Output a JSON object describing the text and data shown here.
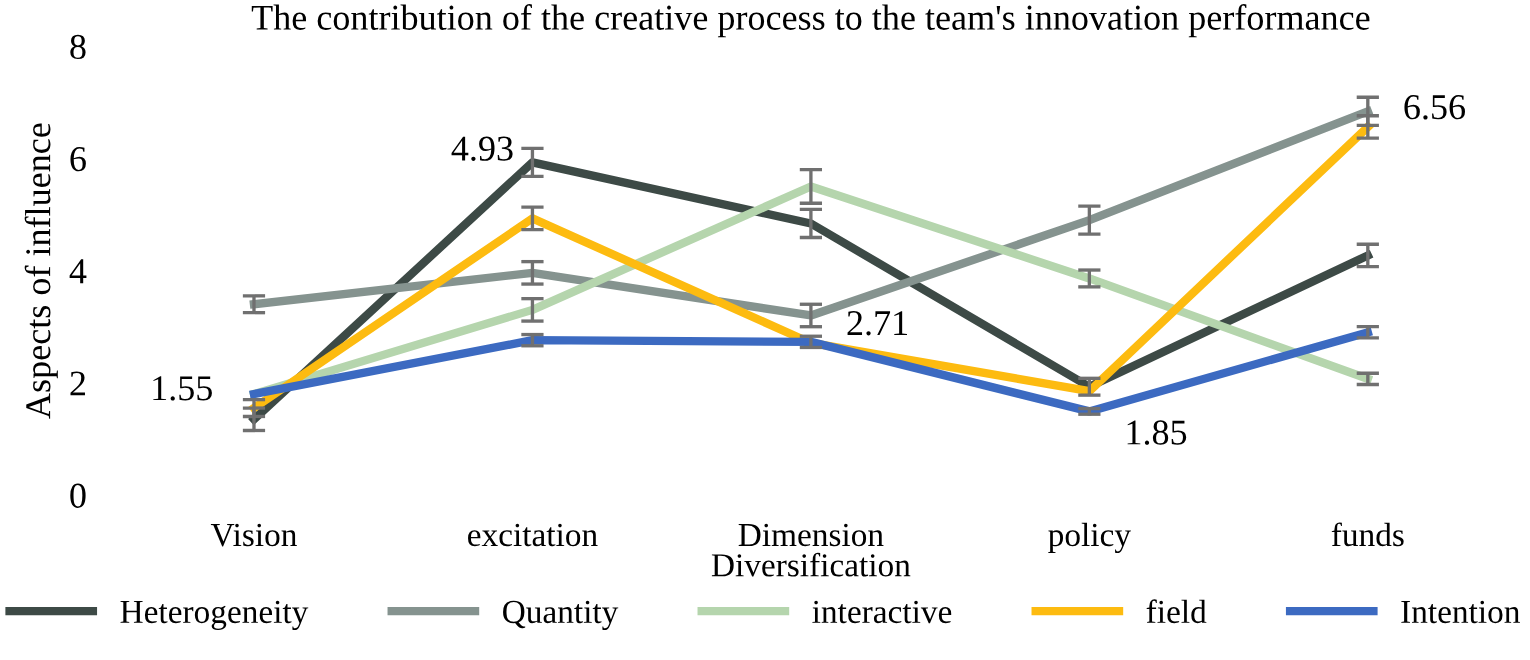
{
  "chart_data": {
    "type": "line",
    "title": "The contribution of the creative process to the team's innovation performance",
    "xlabel": "Diversification",
    "ylabel": "Aspects of influence",
    "categories": [
      "Vision",
      "excitation",
      "Dimension",
      "policy",
      "funds"
    ],
    "series": [
      {
        "name": "Heterogeneity",
        "color": "#3d4a46",
        "values": [
          1.35,
          5.93,
          4.84,
          1.93,
          4.27
        ],
        "errors": [
          0.2,
          0.25,
          0.25,
          0.15,
          0.2
        ]
      },
      {
        "name": "Quantity",
        "color": "#85938f",
        "values": [
          3.4,
          3.96,
          3.2,
          4.9,
          6.84
        ],
        "errors": [
          0.15,
          0.2,
          0.2,
          0.25,
          0.25
        ]
      },
      {
        "name": "interactive",
        "color": "#b5d5ad",
        "values": [
          1.8,
          3.3,
          5.5,
          3.86,
          2.07
        ],
        "errors": [
          null,
          0.2,
          0.3,
          0.15,
          0.1
        ]
      },
      {
        "name": "field",
        "color": "#fdbb10",
        "values": [
          1.55,
          4.93,
          2.71,
          1.85,
          6.56
        ],
        "errors": [
          0.15,
          0.2,
          null,
          null,
          0.2
        ],
        "value_labels": [
          "1.55",
          "4.93",
          "2.71",
          "1.85",
          "6.56"
        ]
      },
      {
        "name": "Intention",
        "color": "#3c6ac1",
        "values": [
          1.8,
          2.76,
          2.73,
          1.49,
          2.9
        ],
        "errors": [
          null,
          0.1,
          0.1,
          0.05,
          0.1
        ]
      }
    ],
    "ylim": [
      0,
      8
    ],
    "yticks": [
      0,
      2,
      4,
      6,
      8
    ],
    "grid": false,
    "legend": "bottom",
    "marker": "none",
    "line_style": "solid"
  }
}
